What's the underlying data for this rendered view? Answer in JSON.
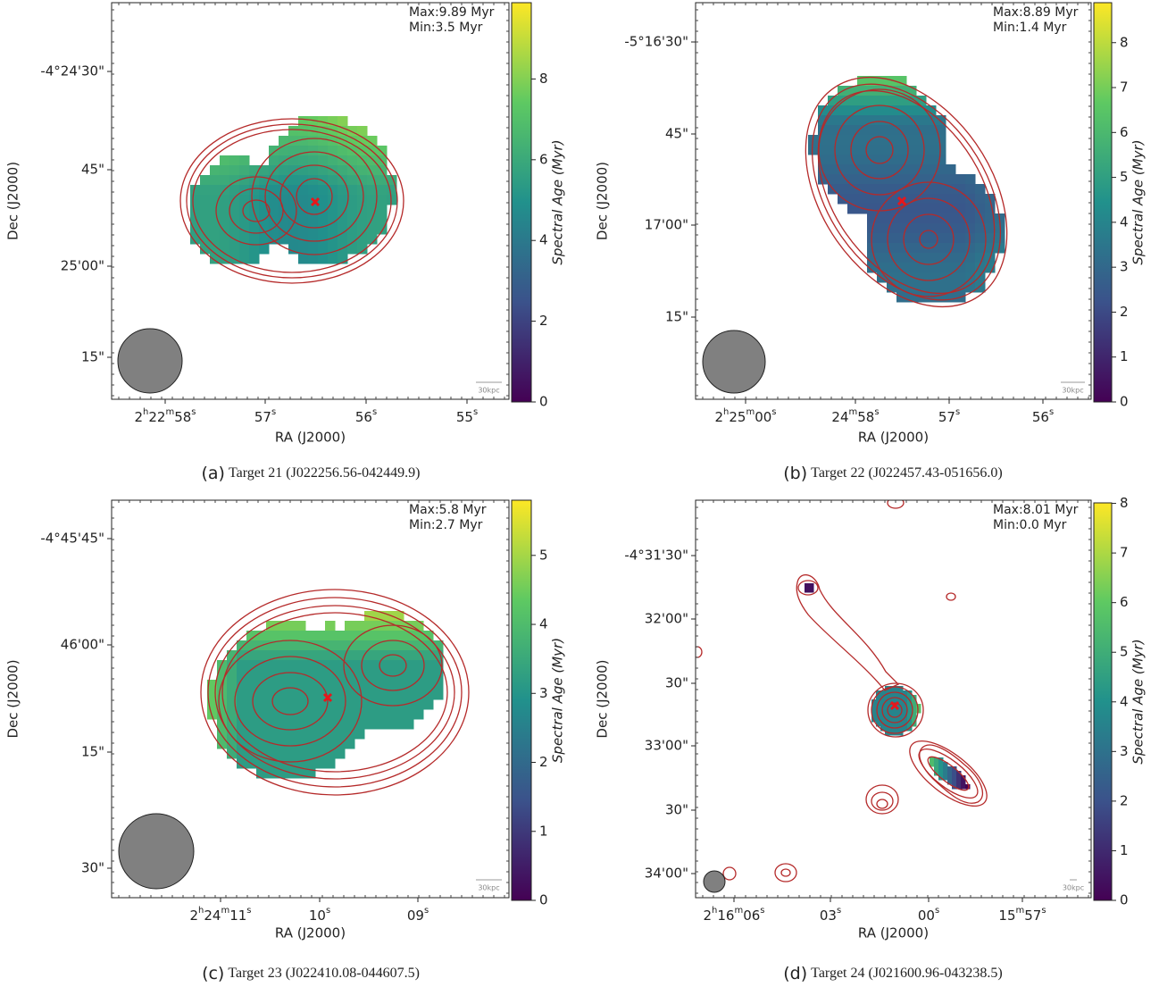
{
  "panels": [
    {
      "caption_letter": "(a)",
      "caption": "Target 21 (J022256.56-042449.9)",
      "max_label": "Max:9.89 Myr",
      "min_label": "Min:3.5 Myr",
      "xlabel": "RA (J2000)",
      "ylabel": "Dec (J2000)",
      "xticklabels": [
        "2h22m58s",
        "57s",
        "56s",
        "55s"
      ],
      "yticklabels": [
        "-4°24'30\"",
        "45\"",
        "25'00\"",
        "15\""
      ],
      "colorbar": {
        "label": "Spectral Age (Myr)",
        "lim": [
          0,
          9.89
        ],
        "ticks": [
          0,
          2,
          4,
          6,
          8
        ]
      },
      "scale_label": "30kpc"
    },
    {
      "caption_letter": "(b)",
      "caption": "Target 22 (J022457.43-051656.0)",
      "max_label": "Max:8.89 Myr",
      "min_label": "Min:1.4 Myr",
      "xlabel": "RA (J2000)",
      "ylabel": "Dec (J2000)",
      "xticklabels": [
        "2h25m00s",
        "24m58s",
        "57s",
        "56s"
      ],
      "yticklabels": [
        "-5°16'30\"",
        "45\"",
        "17'00\"",
        "15\""
      ],
      "colorbar": {
        "label": "Spectral Age (Myr)",
        "lim": [
          0,
          8.89
        ],
        "ticks": [
          0,
          1,
          2,
          3,
          4,
          5,
          6,
          7,
          8
        ]
      },
      "scale_label": "30kpc"
    },
    {
      "caption_letter": "(c)",
      "caption": "Target 23 (J022410.08-044607.5)",
      "max_label": "Max:5.8 Myr",
      "min_label": "Min:2.7 Myr",
      "xlabel": "RA (J2000)",
      "ylabel": "Dec (J2000)",
      "xticklabels": [
        "2h24m11s",
        "10s",
        "09s"
      ],
      "yticklabels": [
        "-4°45'45\"",
        "46'00\"",
        "15\"",
        "30\""
      ],
      "colorbar": {
        "label": "Spectral Age (Myr)",
        "lim": [
          0,
          5.8
        ],
        "ticks": [
          0,
          1,
          2,
          3,
          4,
          5
        ]
      },
      "scale_label": "30kpc"
    },
    {
      "caption_letter": "(d)",
      "caption": "Target 24 (J021600.96-043238.5)",
      "max_label": "Max:8.01 Myr",
      "min_label": "Min:0.0 Myr",
      "xlabel": "RA (J2000)",
      "ylabel": "Dec (J2000)",
      "xticklabels": [
        "2h16m06s",
        "03s",
        "00s",
        "15m57s"
      ],
      "yticklabels": [
        "-4°31'30\"",
        "32'00\"",
        "30\"",
        "33'00\"",
        "30\"",
        "34'00\""
      ],
      "colorbar": {
        "label": "Spectral Age (Myr)",
        "lim": [
          0,
          8.01
        ],
        "ticks": [
          0,
          1,
          2,
          3,
          4,
          5,
          6,
          7,
          8
        ]
      },
      "scale_label": "30kpc"
    }
  ]
}
